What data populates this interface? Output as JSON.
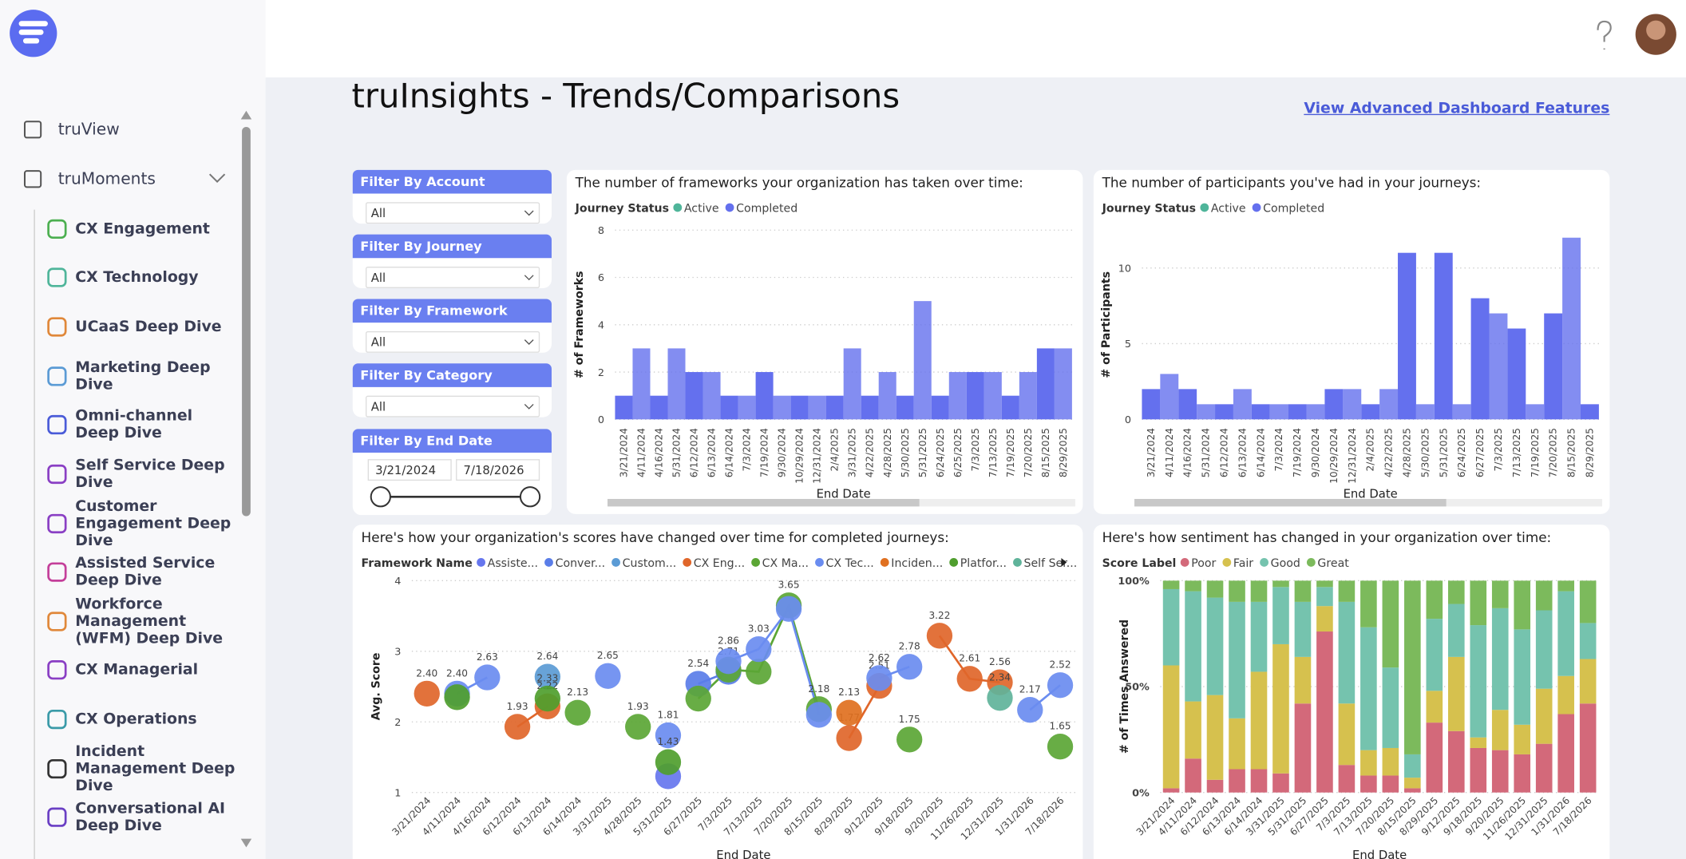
{
  "header": {
    "title": "truInsights - Trends/Comparisons",
    "link": "View Advanced Dashboard Features"
  },
  "nav": [
    "truView",
    "truMoments",
    "CX Engagement",
    "CX Technology",
    "UCaaS Deep Dive",
    "Marketing Deep Dive",
    "Omni-channel Deep Dive",
    "Self Service Deep Dive",
    "Customer Engagement Deep Dive",
    "Assisted Service Deep Dive",
    "Workforce Management (WFM) Deep Dive",
    "CX Managerial",
    "CX Operations",
    "Incident Management Deep Dive",
    "Conversational AI Deep Dive"
  ],
  "filters": [
    {
      "label": "Filter By Account",
      "value": "All"
    },
    {
      "label": "Filter By Journey",
      "value": "All"
    },
    {
      "label": "Filter By Framework",
      "value": "All"
    },
    {
      "label": "Filter By Category",
      "value": "All"
    },
    {
      "label": "Filter By End Date",
      "start": "3/21/2024",
      "end": "7/18/2026"
    }
  ],
  "chart_data": [
    {
      "type": "bar",
      "title": "The number of frameworks your organization has taken over time:",
      "legend_title": "Journey Status",
      "x_label": "End Date",
      "y_label": "# of Frameworks",
      "categories": [
        "3/21/2024",
        "4/11/2024",
        "4/16/2024",
        "5/31/2024",
        "6/12/2024",
        "6/13/2024",
        "6/14/2024",
        "7/3/2024",
        "7/19/2024",
        "9/30/2024",
        "10/29/2024",
        "12/31/2024",
        "2/4/2025",
        "3/31/2025",
        "4/22/2025",
        "4/28/2025",
        "5/30/2025",
        "5/31/2025",
        "6/24/2025",
        "6/25/2025",
        "7/3/2025",
        "7/13/2025",
        "7/19/2025",
        "7/20/2025",
        "8/15/2025",
        "8/29/2025"
      ],
      "series": [
        {
          "name": "Active",
          "color": "#4fb59a",
          "values": [
            0,
            0,
            0,
            0,
            0,
            0,
            0,
            0,
            0,
            0,
            0,
            0,
            0,
            0,
            0,
            0,
            0,
            0,
            0,
            0,
            0,
            0,
            0,
            0,
            0,
            0
          ]
        },
        {
          "name": "Completed",
          "color": "#6470ee",
          "values": [
            1,
            3,
            1,
            3,
            2,
            2,
            1,
            1,
            2,
            1,
            1,
            1,
            1,
            3,
            1,
            2,
            1,
            5,
            1,
            2,
            2,
            2,
            1,
            2,
            3,
            3
          ]
        }
      ],
      "ylim": [
        0,
        8
      ],
      "yticks": [
        0,
        2,
        4,
        6,
        8
      ],
      "grid": true
    },
    {
      "type": "bar",
      "title": "The number of participants you've had in your journeys:",
      "legend_title": "Journey Status",
      "x_label": "End Date",
      "y_label": "# of Participants",
      "categories": [
        "3/21/2024",
        "4/11/2024",
        "4/16/2024",
        "5/31/2024",
        "6/12/2024",
        "6/13/2024",
        "6/14/2024",
        "7/3/2024",
        "7/19/2024",
        "9/30/2024",
        "10/29/2024",
        "12/31/2024",
        "2/4/2025",
        "4/22/2025",
        "4/28/2025",
        "5/30/2025",
        "5/31/2025",
        "6/24/2025",
        "6/27/2025",
        "7/3/2025",
        "7/13/2025",
        "7/19/2025",
        "7/20/2025",
        "8/15/2025",
        "8/29/2025"
      ],
      "series": [
        {
          "name": "Active",
          "color": "#4fb59a",
          "values": [
            0,
            0,
            0,
            0,
            0,
            0,
            0,
            0,
            0,
            0,
            0,
            0,
            0,
            0,
            0,
            0,
            0,
            0,
            0,
            0,
            0,
            0,
            0,
            0,
            0
          ]
        },
        {
          "name": "Completed",
          "color": "#6470ee",
          "values": [
            2,
            3,
            2,
            1,
            1,
            2,
            1,
            1,
            1,
            1,
            2,
            2,
            1,
            2,
            11,
            1,
            11,
            1,
            8,
            7,
            6,
            1,
            7,
            12,
            1
          ]
        }
      ],
      "ylim": [
        0,
        12.5
      ],
      "yticks": [
        0,
        5,
        10
      ],
      "grid": true
    },
    {
      "type": "line",
      "title": "Here's how your organization's scores have changed over time for completed journeys:",
      "legend_title": "Framework Name",
      "x_label": "End Date",
      "y_label": "Avg. Score",
      "categories": [
        "3/21/2024",
        "4/11/2024",
        "4/16/2024",
        "6/12/2024",
        "6/13/2024",
        "6/14/2024",
        "3/31/2025",
        "4/28/2025",
        "5/31/2025",
        "6/27/2025",
        "7/3/2025",
        "7/13/2025",
        "7/20/2025",
        "8/15/2025",
        "8/29/2025",
        "9/12/2025",
        "9/18/2025",
        "9/20/2025",
        "11/26/2025",
        "12/31/2025",
        "1/31/2026",
        "7/18/2026"
      ],
      "series": [
        {
          "name": "Assiste...",
          "color": "#6676ee",
          "values": [
            null,
            null,
            null,
            null,
            null,
            null,
            null,
            null,
            1.23,
            null,
            null,
            null,
            null,
            null,
            null,
            null,
            null,
            null,
            null,
            null,
            null,
            null
          ],
          "value_labels": [
            null,
            null,
            null,
            null,
            null,
            null,
            null,
            null,
            null,
            null,
            null,
            null,
            null,
            null,
            null,
            null,
            null,
            null,
            null,
            null,
            null,
            null
          ]
        },
        {
          "name": "Conver...",
          "color": "#5a7de8",
          "values": [
            null,
            null,
            null,
            null,
            null,
            null,
            null,
            null,
            null,
            2.54,
            2.71,
            null,
            null,
            null,
            null,
            null,
            null,
            null,
            null,
            null,
            null,
            null
          ],
          "value_labels": [
            null,
            null,
            null,
            null,
            null,
            null,
            null,
            null,
            null,
            "2.54",
            "2.71",
            null,
            null,
            null,
            null,
            null,
            null,
            null,
            null,
            null,
            null,
            null
          ]
        },
        {
          "name": "Custom...",
          "color": "#5b9bd5",
          "values": [
            null,
            null,
            null,
            null,
            2.64,
            null,
            null,
            null,
            null,
            null,
            null,
            null,
            null,
            null,
            null,
            null,
            null,
            null,
            null,
            null,
            null,
            null
          ],
          "value_labels": [
            null,
            null,
            null,
            null,
            "2.64",
            null,
            null,
            null,
            null,
            null,
            null,
            null,
            null,
            null,
            null,
            null,
            null,
            null,
            null,
            null,
            null,
            null
          ]
        },
        {
          "name": "CX Eng...",
          "color": "#e0662a",
          "values": [
            2.4,
            null,
            null,
            1.93,
            2.22,
            null,
            null,
            null,
            null,
            null,
            null,
            null,
            null,
            null,
            1.77,
            2.51,
            null,
            3.22,
            2.61,
            2.56,
            null,
            null
          ],
          "value_labels": [
            "2.40",
            null,
            null,
            "1.93",
            "2.22",
            null,
            null,
            null,
            null,
            null,
            null,
            null,
            null,
            null,
            "1.77",
            "2.51",
            null,
            "3.22",
            "2.61",
            "2.56",
            null,
            null
          ]
        },
        {
          "name": "CX Ma...",
          "color": "#5ba635",
          "values": [
            null,
            null,
            null,
            null,
            null,
            2.13,
            null,
            1.93,
            null,
            2.33,
            2.74,
            2.71,
            3.65,
            2.18,
            null,
            null,
            1.75,
            null,
            null,
            null,
            null,
            1.65
          ],
          "value_labels": [
            null,
            null,
            null,
            null,
            null,
            "2.13",
            null,
            "1.93",
            null,
            null,
            null,
            null,
            "3.65",
            "2.18",
            null,
            null,
            "1.75",
            null,
            null,
            null,
            null,
            "1.65"
          ]
        },
        {
          "name": "CX Tec...",
          "color": "#6a8cf0",
          "values": [
            null,
            2.4,
            2.63,
            null,
            null,
            null,
            2.65,
            null,
            1.81,
            null,
            2.86,
            3.03,
            3.6,
            2.1,
            null,
            2.62,
            2.78,
            null,
            null,
            null,
            2.17,
            2.52
          ],
          "value_labels": [
            null,
            "2.40",
            "2.63",
            null,
            null,
            null,
            "2.65",
            null,
            "1.81",
            null,
            "2.86",
            "3.03",
            null,
            null,
            null,
            "2.62",
            "2.78",
            null,
            null,
            null,
            "2.17",
            "2.52"
          ]
        },
        {
          "name": "Inciden...",
          "color": "#e07020",
          "values": [
            null,
            null,
            null,
            null,
            null,
            null,
            null,
            null,
            null,
            null,
            null,
            null,
            null,
            null,
            2.13,
            null,
            null,
            null,
            null,
            null,
            null,
            null
          ],
          "value_labels": [
            null,
            null,
            null,
            null,
            null,
            null,
            null,
            null,
            null,
            null,
            null,
            null,
            null,
            null,
            "2.13",
            null,
            null,
            null,
            null,
            null,
            null,
            null
          ]
        },
        {
          "name": "Platfor...",
          "color": "#4f9e2e",
          "values": [
            null,
            2.35,
            null,
            null,
            2.33,
            null,
            null,
            null,
            1.43,
            null,
            null,
            null,
            null,
            null,
            null,
            null,
            null,
            null,
            null,
            null,
            null,
            null
          ],
          "value_labels": [
            null,
            null,
            null,
            null,
            "2.33",
            null,
            null,
            null,
            "1.43",
            null,
            null,
            null,
            null,
            null,
            null,
            null,
            null,
            null,
            null,
            null,
            null,
            null
          ]
        },
        {
          "name": "Self Ser...",
          "color": "#5fb39a",
          "values": [
            null,
            null,
            null,
            null,
            null,
            null,
            null,
            null,
            null,
            null,
            null,
            null,
            null,
            null,
            null,
            null,
            null,
            null,
            null,
            2.34,
            null,
            null
          ],
          "value_labels": [
            null,
            null,
            null,
            null,
            null,
            null,
            null,
            null,
            null,
            null,
            null,
            null,
            null,
            null,
            null,
            null,
            null,
            null,
            null,
            "2.34",
            null,
            null
          ]
        }
      ],
      "ylim": [
        1,
        4
      ],
      "yticks": [
        1,
        2,
        3,
        4
      ],
      "grid": true
    },
    {
      "type": "bar",
      "title": "Here's how sentiment has changed in your organization over time:",
      "legend_title": "Score Label",
      "x_label": "End Date",
      "y_label": "# of Times Answered",
      "categories": [
        "3/21/2024",
        "4/11/2024",
        "6/12/2024",
        "6/13/2024",
        "6/14/2024",
        "3/31/2025",
        "5/31/2025",
        "6/27/2025",
        "7/3/2025",
        "7/13/2025",
        "7/20/2025",
        "8/15/2025",
        "8/29/2025",
        "9/12/2025",
        "9/18/2025",
        "9/20/2025",
        "11/26/2025",
        "12/31/2025",
        "1/31/2026",
        "7/18/2026"
      ],
      "series": [
        {
          "name": "Poor",
          "color": "#d3697a",
          "values": [
            2,
            16,
            6,
            11,
            11,
            9,
            42,
            76,
            13,
            8,
            8,
            2,
            33,
            29,
            21,
            20,
            18,
            23,
            37,
            42
          ]
        },
        {
          "name": "Fair",
          "color": "#d6c14e",
          "values": [
            58,
            27,
            40,
            24,
            46,
            61,
            22,
            12,
            29,
            12,
            13,
            5,
            15,
            35,
            5,
            19,
            14,
            26,
            18,
            21
          ]
        },
        {
          "name": "Good",
          "color": "#75c3ae",
          "values": [
            36,
            52,
            46,
            55,
            33,
            27,
            26,
            9,
            48,
            58,
            38,
            11,
            34,
            25,
            53,
            48,
            45,
            37,
            40,
            17
          ]
        },
        {
          "name": "Great",
          "color": "#7cba5c",
          "values": [
            4,
            5,
            8,
            10,
            10,
            3,
            10,
            3,
            10,
            22,
            41,
            82,
            18,
            11,
            21,
            13,
            23,
            14,
            5,
            20
          ]
        }
      ],
      "ylim": [
        0,
        100
      ],
      "yticks": [
        {
          "value": 0,
          "label": "0%"
        },
        {
          "value": 50,
          "label": "50%"
        },
        {
          "value": 100,
          "label": "100%"
        }
      ],
      "grid": true
    }
  ]
}
